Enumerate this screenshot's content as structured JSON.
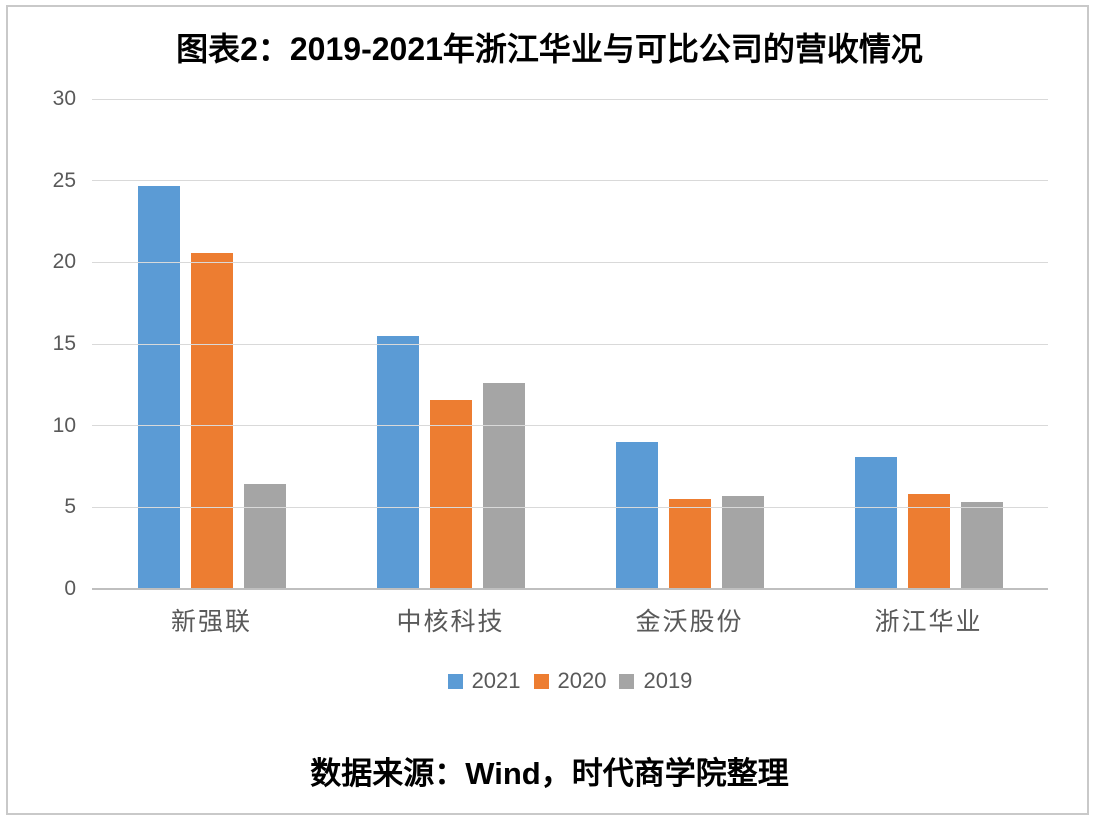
{
  "title": "图表2：2019-2021年浙江华业与可比公司的营收情况",
  "footer": {
    "text": "数据来源：Wind，时代商学院整理"
  },
  "colors": {
    "series_2021": "#5B9BD5",
    "series_2020": "#ED7D31",
    "series_2019": "#A5A5A5",
    "gridline": "#D9D9D9",
    "axis_line": "#BFBFBF",
    "tick_text": "#595959",
    "frame_border": "#C9C9C9"
  },
  "chart_data": {
    "type": "bar",
    "title": "图表2：2019-2021年浙江华业与可比公司的营收情况",
    "categories": [
      "新强联",
      "中核科技",
      "金沃股份",
      "浙江华业"
    ],
    "series": [
      {
        "name": "2021",
        "color": "#5B9BD5",
        "values": [
          24.7,
          15.5,
          9.0,
          8.1
        ]
      },
      {
        "name": "2020",
        "color": "#ED7D31",
        "values": [
          20.6,
          11.6,
          5.5,
          5.8
        ]
      },
      {
        "name": "2019",
        "color": "#A5A5A5",
        "values": [
          6.4,
          12.6,
          5.7,
          5.3
        ]
      }
    ],
    "xlabel": "",
    "ylabel": "",
    "ylim": [
      0,
      30
    ],
    "yticks": [
      0,
      5,
      10,
      15,
      20,
      25,
      30
    ],
    "grid": true,
    "legend_position": "bottom",
    "source_note": "数据来源：Wind，时代商学院整理"
  }
}
